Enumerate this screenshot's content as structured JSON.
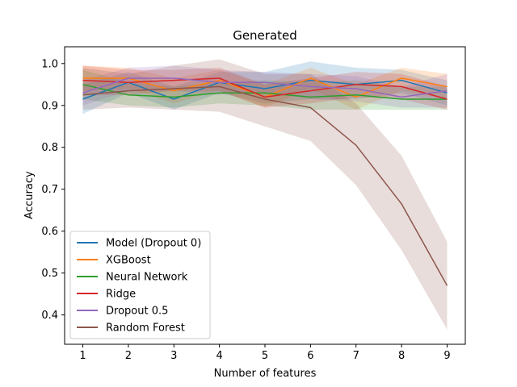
{
  "chart_data": {
    "type": "line",
    "title": "Generated",
    "xlabel": "Number of features",
    "ylabel": "Accuracy",
    "x": [
      1,
      2,
      3,
      4,
      5,
      6,
      7,
      8,
      9
    ],
    "xlim": [
      0.6,
      9.4
    ],
    "ylim": [
      0.33,
      1.04
    ],
    "xticks": [
      1,
      2,
      3,
      4,
      5,
      6,
      7,
      8,
      9
    ],
    "yticks": [
      0.4,
      0.5,
      0.6,
      0.7,
      0.8,
      0.9,
      1.0
    ],
    "ytick_labels": [
      "0.4",
      "0.5",
      "0.6",
      "0.7",
      "0.8",
      "0.9",
      "1.0"
    ],
    "grid": false,
    "legend_position": "lower-left",
    "series": [
      {
        "name": "Model (Dropout 0)",
        "color": "#1f77b4",
        "values": [
          0.915,
          0.955,
          0.915,
          0.955,
          0.94,
          0.96,
          0.95,
          0.96,
          0.93
        ],
        "lower": [
          0.88,
          0.93,
          0.89,
          0.93,
          0.905,
          0.915,
          0.915,
          0.93,
          0.9
        ],
        "upper": [
          0.95,
          0.98,
          0.945,
          0.98,
          0.98,
          1.005,
          0.99,
          0.985,
          0.96
        ]
      },
      {
        "name": "XGBoost",
        "color": "#ff7f0e",
        "values": [
          0.965,
          0.965,
          0.935,
          0.96,
          0.92,
          0.965,
          0.92,
          0.965,
          0.945
        ],
        "lower": [
          0.935,
          0.94,
          0.905,
          0.935,
          0.895,
          0.94,
          0.89,
          0.935,
          0.915
        ],
        "upper": [
          0.995,
          0.99,
          0.965,
          0.985,
          0.95,
          0.99,
          0.95,
          0.99,
          0.975
        ]
      },
      {
        "name": "Neural Network",
        "color": "#2ca02c",
        "values": [
          0.95,
          0.925,
          0.92,
          0.93,
          0.93,
          0.92,
          0.925,
          0.915,
          0.915
        ],
        "lower": [
          0.915,
          0.9,
          0.895,
          0.905,
          0.9,
          0.89,
          0.89,
          0.89,
          0.89
        ],
        "upper": [
          0.985,
          0.955,
          0.945,
          0.955,
          0.96,
          0.955,
          0.96,
          0.945,
          0.945
        ]
      },
      {
        "name": "Ridge",
        "color": "#d62728",
        "values": [
          0.96,
          0.955,
          0.96,
          0.965,
          0.92,
          0.935,
          0.95,
          0.945,
          0.915
        ],
        "lower": [
          0.925,
          0.925,
          0.935,
          0.935,
          0.895,
          0.905,
          0.92,
          0.915,
          0.89
        ],
        "upper": [
          0.995,
          0.985,
          0.985,
          0.99,
          0.95,
          0.965,
          0.98,
          0.975,
          0.945
        ]
      },
      {
        "name": "Dropout 0.5",
        "color": "#9467bd",
        "values": [
          0.93,
          0.965,
          0.965,
          0.955,
          0.955,
          0.945,
          0.94,
          0.92,
          0.935
        ],
        "lower": [
          0.9,
          0.935,
          0.935,
          0.925,
          0.93,
          0.915,
          0.91,
          0.895,
          0.895
        ],
        "upper": [
          0.96,
          0.99,
          0.995,
          0.985,
          0.98,
          0.975,
          0.97,
          0.945,
          0.975
        ]
      },
      {
        "name": "Random Forest",
        "color": "#8c564b",
        "values": [
          0.925,
          0.935,
          0.94,
          0.945,
          0.915,
          0.895,
          0.805,
          0.665,
          0.47
        ],
        "lower": [
          0.89,
          0.895,
          0.89,
          0.885,
          0.85,
          0.815,
          0.71,
          0.555,
          0.365
        ],
        "upper": [
          0.99,
          0.975,
          0.995,
          1.01,
          0.975,
          0.975,
          0.905,
          0.78,
          0.575
        ]
      }
    ]
  }
}
